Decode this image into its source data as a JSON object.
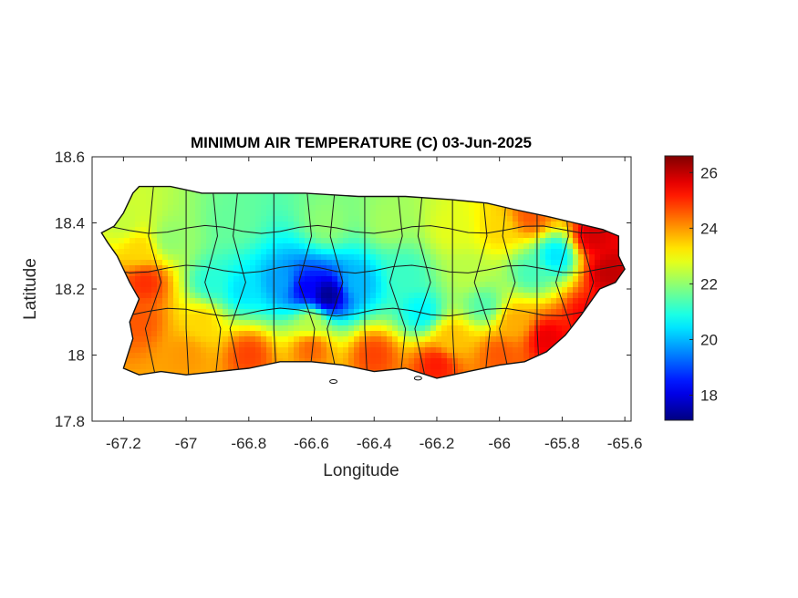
{
  "chart_data": {
    "type": "heatmap",
    "title": "MINIMUM AIR TEMPERATURE (C) 03-Jun-2025",
    "xlabel": "Longitude",
    "ylabel": "Latitude",
    "xlim": [
      -67.3,
      -65.58
    ],
    "ylim": [
      17.8,
      18.6
    ],
    "xticks": [
      -67.2,
      -67,
      -66.8,
      -66.6,
      -66.4,
      -66.2,
      -66,
      -65.8,
      -65.6
    ],
    "xtick_labels": [
      "-67.2",
      "-67",
      "-66.8",
      "-66.6",
      "-66.4",
      "-66.2",
      "-66",
      "-65.8",
      "-65.6"
    ],
    "yticks": [
      17.8,
      18,
      18.2,
      18.4,
      18.6
    ],
    "ytick_labels": [
      "17.8",
      "18",
      "18.2",
      "18.4",
      "18.6"
    ],
    "colormap": "jet",
    "clim": [
      17.1,
      26.6
    ],
    "colorbar_ticks": [
      18,
      20,
      22,
      24,
      26
    ],
    "colorbar_tick_labels": [
      "18",
      "20",
      "22",
      "24",
      "26"
    ],
    "grid": false,
    "region_outline": [
      [
        -67.27,
        18.37
      ],
      [
        -67.23,
        18.39
      ],
      [
        -67.2,
        18.43
      ],
      [
        -67.17,
        18.49
      ],
      [
        -67.15,
        18.51
      ],
      [
        -67.05,
        18.51
      ],
      [
        -66.95,
        18.49
      ],
      [
        -66.8,
        18.49
      ],
      [
        -66.62,
        18.49
      ],
      [
        -66.45,
        18.48
      ],
      [
        -66.3,
        18.48
      ],
      [
        -66.15,
        18.47
      ],
      [
        -66.04,
        18.46
      ],
      [
        -65.95,
        18.44
      ],
      [
        -65.85,
        18.42
      ],
      [
        -65.76,
        18.4
      ],
      [
        -65.67,
        18.38
      ],
      [
        -65.62,
        18.36
      ],
      [
        -65.62,
        18.3
      ],
      [
        -65.6,
        18.26
      ],
      [
        -65.63,
        18.22
      ],
      [
        -65.68,
        18.2
      ],
      [
        -65.74,
        18.12
      ],
      [
        -65.79,
        18.06
      ],
      [
        -65.85,
        18.01
      ],
      [
        -65.92,
        17.98
      ],
      [
        -66.0,
        17.97
      ],
      [
        -66.1,
        17.95
      ],
      [
        -66.2,
        17.93
      ],
      [
        -66.3,
        17.96
      ],
      [
        -66.4,
        17.95
      ],
      [
        -66.5,
        17.97
      ],
      [
        -66.6,
        17.98
      ],
      [
        -66.7,
        17.98
      ],
      [
        -66.8,
        17.96
      ],
      [
        -66.9,
        17.95
      ],
      [
        -67.0,
        17.94
      ],
      [
        -67.08,
        17.95
      ],
      [
        -67.15,
        17.94
      ],
      [
        -67.2,
        17.96
      ],
      [
        -67.17,
        18.05
      ],
      [
        -67.18,
        18.1
      ],
      [
        -67.15,
        18.17
      ],
      [
        -67.18,
        18.22
      ],
      [
        -67.22,
        18.3
      ],
      [
        -67.25,
        18.34
      ]
    ],
    "field_anchors": [
      {
        "lon": -66.55,
        "lat": 18.18,
        "value": 17.2
      },
      {
        "lon": -66.62,
        "lat": 18.2,
        "value": 18.2
      },
      {
        "lon": -66.7,
        "lat": 18.22,
        "value": 19.8
      },
      {
        "lon": -66.45,
        "lat": 18.22,
        "value": 20.0
      },
      {
        "lon": -66.82,
        "lat": 18.2,
        "value": 20.4
      },
      {
        "lon": -66.92,
        "lat": 18.22,
        "value": 21.0
      },
      {
        "lon": -66.25,
        "lat": 18.13,
        "value": 20.6
      },
      {
        "lon": -66.05,
        "lat": 18.15,
        "value": 21.4
      },
      {
        "lon": -65.82,
        "lat": 18.3,
        "value": 20.4
      },
      {
        "lon": -65.9,
        "lat": 18.25,
        "value": 21.3
      },
      {
        "lon": -67.05,
        "lat": 18.35,
        "value": 22.0
      },
      {
        "lon": -66.85,
        "lat": 18.4,
        "value": 21.6
      },
      {
        "lon": -66.55,
        "lat": 18.4,
        "value": 22.0
      },
      {
        "lon": -66.35,
        "lat": 18.4,
        "value": 22.2
      },
      {
        "lon": -66.15,
        "lat": 18.38,
        "value": 22.8
      },
      {
        "lon": -66.0,
        "lat": 18.38,
        "value": 23.4
      },
      {
        "lon": -65.9,
        "lat": 18.42,
        "value": 24.6
      },
      {
        "lon": -65.7,
        "lat": 18.36,
        "value": 25.8
      },
      {
        "lon": -65.65,
        "lat": 18.25,
        "value": 26.0
      },
      {
        "lon": -65.72,
        "lat": 18.12,
        "value": 25.4
      },
      {
        "lon": -65.85,
        "lat": 18.05,
        "value": 25.6
      },
      {
        "lon": -66.0,
        "lat": 18.0,
        "value": 24.6
      },
      {
        "lon": -66.2,
        "lat": 17.97,
        "value": 25.2
      },
      {
        "lon": -66.4,
        "lat": 18.0,
        "value": 24.8
      },
      {
        "lon": -66.6,
        "lat": 18.02,
        "value": 24.5
      },
      {
        "lon": -66.8,
        "lat": 18.0,
        "value": 24.8
      },
      {
        "lon": -67.0,
        "lat": 18.0,
        "value": 24.0
      },
      {
        "lon": -67.15,
        "lat": 18.1,
        "value": 24.6
      },
      {
        "lon": -67.13,
        "lat": 18.22,
        "value": 25.0
      },
      {
        "lon": -67.15,
        "lat": 18.32,
        "value": 23.4
      },
      {
        "lon": -67.2,
        "lat": 18.4,
        "value": 22.5
      },
      {
        "lon": -66.95,
        "lat": 18.1,
        "value": 23.4
      },
      {
        "lon": -66.6,
        "lat": 18.1,
        "value": 22.4
      },
      {
        "lon": -66.3,
        "lat": 18.25,
        "value": 21.2
      },
      {
        "lon": -66.1,
        "lat": 18.25,
        "value": 22.4
      },
      {
        "lon": -65.95,
        "lat": 18.1,
        "value": 23.8
      },
      {
        "lon": -66.15,
        "lat": 18.05,
        "value": 23.6
      }
    ]
  }
}
